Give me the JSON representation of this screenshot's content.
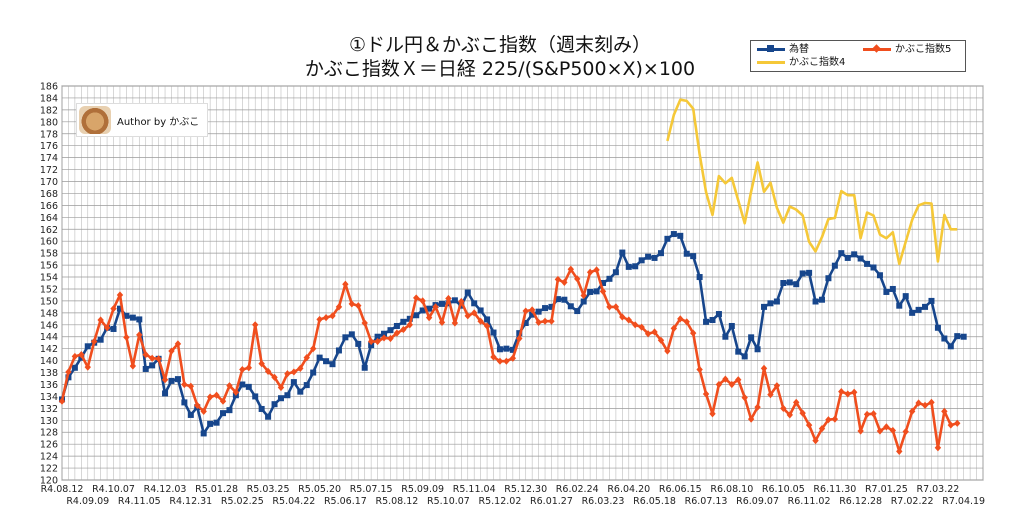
{
  "title_line1": "①ドル円＆かぶこ指数（週末刻み）",
  "title_line2": "かぶこ指数Ｘ＝日経 225/(S&P500×X)×100",
  "author": "Author by かぶこ",
  "colors": {
    "usdjpy": "#17468c",
    "kabuko5": "#f04e1e",
    "kabuko4": "#f5c838",
    "grid": "#9a9a9a"
  },
  "chart_data": {
    "type": "line",
    "title": "①ドル円＆かぶこ指数（週末刻み）",
    "ylim": [
      120,
      186
    ],
    "ytick_step": 2,
    "n_points": 144,
    "x_ticks_upper": [
      {
        "i": 0,
        "label": "R4.08.12"
      },
      {
        "i": 8,
        "label": "R4.10.07"
      },
      {
        "i": 16,
        "label": "R4.12.03"
      },
      {
        "i": 24,
        "label": "R5.01.28"
      },
      {
        "i": 32,
        "label": "R5.03.25"
      },
      {
        "i": 40,
        "label": "R5.05.20"
      },
      {
        "i": 48,
        "label": "R5.07.15"
      },
      {
        "i": 56,
        "label": "R5.09.09"
      },
      {
        "i": 64,
        "label": "R5.11.04"
      },
      {
        "i": 72,
        "label": "R5.12.30"
      },
      {
        "i": 80,
        "label": "R6.02.24"
      },
      {
        "i": 88,
        "label": "R6.04.20"
      },
      {
        "i": 96,
        "label": "R6.06.15"
      },
      {
        "i": 104,
        "label": "R6.08.10"
      },
      {
        "i": 112,
        "label": "R6.10.05"
      },
      {
        "i": 120,
        "label": "R6.11.30"
      },
      {
        "i": 128,
        "label": "R7.01.25"
      },
      {
        "i": 136,
        "label": "R7.03.22"
      }
    ],
    "x_ticks_lower": [
      {
        "i": 4,
        "label": "R4.09.09"
      },
      {
        "i": 12,
        "label": "R4.11.05"
      },
      {
        "i": 20,
        "label": "R4.12.31"
      },
      {
        "i": 28,
        "label": "R5.02.25"
      },
      {
        "i": 36,
        "label": "R5.04.22"
      },
      {
        "i": 44,
        "label": "R5.06.17"
      },
      {
        "i": 52,
        "label": "R5.08.12"
      },
      {
        "i": 60,
        "label": "R5.10.07"
      },
      {
        "i": 68,
        "label": "R5.12.02"
      },
      {
        "i": 76,
        "label": "R6.01.27"
      },
      {
        "i": 84,
        "label": "R6.03.23"
      },
      {
        "i": 92,
        "label": "R6.05.18"
      },
      {
        "i": 100,
        "label": "R6.07.13"
      },
      {
        "i": 108,
        "label": "R6.09.07"
      },
      {
        "i": 116,
        "label": "R6.11.02"
      },
      {
        "i": 124,
        "label": "R6.12.28"
      },
      {
        "i": 132,
        "label": "R7.02.22"
      },
      {
        "i": 140,
        "label": "R7.04.19"
      }
    ],
    "series": [
      {
        "name": "為替",
        "key": "usdjpy",
        "marker": "square",
        "start_index": 0,
        "values": [
          133.5,
          137.2,
          138.8,
          140.5,
          142.4,
          143.0,
          143.5,
          145.5,
          145.3,
          148.7,
          147.5,
          147.2,
          146.9,
          138.6,
          139.2,
          140.3,
          134.5,
          136.6,
          136.9,
          133.0,
          130.9,
          132.2,
          127.8,
          129.4,
          129.6,
          131.2,
          131.7,
          134.2,
          136.0,
          135.6,
          134.0,
          131.9,
          130.6,
          132.7,
          133.7,
          134.2,
          136.4,
          134.8,
          135.9,
          138.0,
          140.5,
          139.9,
          139.4,
          141.7,
          143.9,
          144.4,
          142.8,
          138.8,
          142.6,
          144.0,
          144.5,
          145.1,
          145.8,
          146.5,
          147.0,
          147.6,
          148.4,
          148.7,
          149.3,
          149.5,
          149.6,
          150.1,
          149.2,
          151.4,
          149.6,
          148.4,
          146.9,
          144.7,
          141.9,
          142.0,
          141.8,
          144.6,
          146.3,
          147.7,
          148.2,
          148.8,
          149.0,
          150.3,
          150.2,
          149.1,
          148.3,
          149.9,
          151.5,
          151.6,
          153.0,
          153.7,
          154.8,
          158.1,
          155.7,
          155.8,
          156.8,
          157.4,
          157.2,
          158.0,
          160.4,
          161.2,
          160.9,
          157.9,
          157.5,
          154.0,
          146.5,
          146.8,
          147.8,
          144.0,
          145.8,
          141.5,
          140.7,
          143.9,
          141.9,
          149.0,
          149.6,
          149.9,
          153.0,
          153.1,
          152.8,
          154.6,
          154.7,
          149.9,
          150.2,
          153.8,
          155.9,
          158.0,
          157.2,
          157.8,
          157.1,
          156.2,
          155.6,
          154.3,
          151.5,
          152.0,
          149.2,
          150.8,
          148.0,
          148.5,
          149.0,
          150.0,
          145.5,
          143.7,
          142.4,
          144.1,
          144.0
        ]
      },
      {
        "name": "かぶこ指数5",
        "key": "kabuko5",
        "marker": "diamond",
        "start_index": 0,
        "values": [
          133.2,
          138.1,
          140.7,
          141.0,
          138.9,
          143.2,
          146.8,
          145.5,
          148.7,
          151.0,
          143.9,
          139.1,
          144.3,
          141.0,
          140.4,
          140.3,
          136.8,
          141.6,
          142.8,
          136.0,
          135.7,
          132.5,
          131.5,
          133.9,
          134.2,
          133.2,
          135.8,
          134.7,
          138.5,
          138.8,
          146.0,
          139.5,
          138.2,
          137.2,
          135.5,
          137.8,
          138.1,
          138.7,
          140.5,
          142.0,
          146.9,
          147.2,
          147.5,
          149.0,
          152.8,
          149.5,
          149.2,
          146.3,
          143.2,
          143.2,
          143.8,
          143.7,
          144.6,
          145.2,
          146.0,
          150.5,
          150.0,
          147.2,
          149.0,
          146.4,
          150.4,
          146.3,
          149.9,
          147.5,
          148.0,
          146.6,
          145.8,
          140.6,
          139.9,
          139.9,
          140.4,
          143.7,
          148.3,
          148.5,
          146.4,
          146.6,
          146.6,
          153.6,
          153.1,
          155.3,
          153.7,
          150.9,
          154.8,
          155.2,
          151.6,
          149.0,
          149.0,
          147.3,
          146.8,
          146.0,
          145.6,
          144.5,
          144.8,
          143.4,
          141.6,
          145.4,
          147.0,
          146.5,
          144.6,
          138.5,
          134.4,
          131.1,
          136.0,
          136.9,
          136.0,
          136.8,
          133.8,
          130.2,
          132.2,
          138.7,
          134.3,
          135.8,
          132.0,
          130.9,
          133.0,
          131.2,
          129.2,
          126.6,
          128.6,
          130.1,
          130.2,
          134.8,
          134.4,
          134.7,
          128.2,
          131.0,
          131.1,
          128.2,
          128.9,
          128.3,
          124.8,
          128.1,
          131.5,
          132.9,
          132.5,
          133.0,
          125.4,
          131.5,
          129.2,
          129.5
        ]
      },
      {
        "name": "かぶこ指数4",
        "key": "kabuko4",
        "marker": "none",
        "start_index": 94,
        "values": [
          176.8,
          181.2,
          183.7,
          183.5,
          182.2,
          174.6,
          168.2,
          164.4,
          170.9,
          169.7,
          170.6,
          166.8,
          163.0,
          168.3,
          173.2,
          168.3,
          169.8,
          165.6,
          163.1,
          165.8,
          165.3,
          164.3,
          159.9,
          158.3,
          160.7,
          163.7,
          163.9,
          168.4,
          167.7,
          167.7,
          160.5,
          164.8,
          164.3,
          161.1,
          160.5,
          161.5,
          156.2,
          159.9,
          163.6,
          166.0,
          166.4,
          166.3,
          156.6,
          164.4,
          162.0,
          162.0
        ]
      }
    ]
  }
}
